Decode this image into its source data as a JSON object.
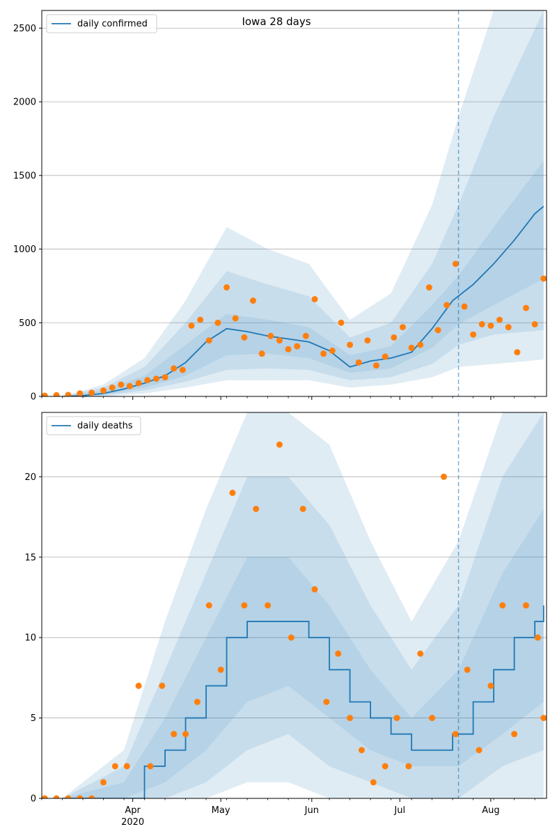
{
  "colors": {
    "line": "#1f77b4",
    "points": "#ff7f0e",
    "band": "#1f77b4",
    "grid": "#b0b0b0",
    "vline": "#1f77b4"
  },
  "chart_data": [
    {
      "type": "line",
      "title": "Iowa 28 days",
      "legend": "daily confirmed",
      "legend_position": "top-left",
      "grid": "horizontal",
      "x_range": [
        "2020-03-01",
        "2020-08-20"
      ],
      "ylim": [
        0,
        2620
      ],
      "yticks": [
        0,
        500,
        1000,
        1500,
        2000,
        2500
      ],
      "vline": "2020-07-21",
      "line": {
        "x": [
          "2020-03-08",
          "2020-03-15",
          "2020-03-22",
          "2020-03-29",
          "2020-04-05",
          "2020-04-12",
          "2020-04-19",
          "2020-04-26",
          "2020-05-03",
          "2020-05-10",
          "2020-05-17",
          "2020-05-24",
          "2020-05-31",
          "2020-06-07",
          "2020-06-14",
          "2020-06-21",
          "2020-06-28",
          "2020-07-05",
          "2020-07-12",
          "2020-07-19",
          "2020-07-26",
          "2020-08-02",
          "2020-08-09",
          "2020-08-16",
          "2020-08-19"
        ],
        "y": [
          0,
          5,
          20,
          50,
          90,
          140,
          230,
          370,
          460,
          440,
          410,
          390,
          370,
          310,
          200,
          240,
          260,
          300,
          460,
          650,
          760,
          900,
          1060,
          1240,
          1290
        ]
      },
      "bands": [
        {
          "x": [
            "2020-03-08",
            "2020-03-22",
            "2020-04-05",
            "2020-04-19",
            "2020-05-03",
            "2020-05-17",
            "2020-05-31",
            "2020-06-14",
            "2020-06-28",
            "2020-07-12",
            "2020-07-21",
            "2020-08-02",
            "2020-08-19"
          ],
          "low": [
            0,
            10,
            60,
            140,
            280,
            290,
            260,
            160,
            190,
            330,
            490,
            620,
            800
          ],
          "high": [
            0,
            40,
            140,
            350,
            560,
            520,
            470,
            280,
            340,
            620,
            820,
            1150,
            1600
          ]
        },
        {
          "x": [
            "2020-03-08",
            "2020-03-22",
            "2020-04-05",
            "2020-04-19",
            "2020-05-03",
            "2020-05-17",
            "2020-05-31",
            "2020-06-14",
            "2020-06-28",
            "2020-07-12",
            "2020-07-21",
            "2020-08-02",
            "2020-08-19"
          ],
          "low": [
            0,
            5,
            40,
            100,
            180,
            190,
            180,
            110,
            130,
            220,
            350,
            420,
            450
          ],
          "high": [
            0,
            60,
            200,
            500,
            850,
            760,
            680,
            400,
            500,
            900,
            1300,
            1900,
            2620
          ]
        },
        {
          "x": [
            "2020-03-08",
            "2020-03-22",
            "2020-04-05",
            "2020-04-19",
            "2020-05-03",
            "2020-05-17",
            "2020-05-31",
            "2020-06-14",
            "2020-06-28",
            "2020-07-12",
            "2020-07-21",
            "2020-08-02",
            "2020-08-19"
          ],
          "low": [
            0,
            0,
            20,
            60,
            110,
            110,
            110,
            60,
            80,
            130,
            200,
            220,
            250
          ],
          "high": [
            0,
            80,
            260,
            650,
            1150,
            1000,
            900,
            520,
            700,
            1300,
            1900,
            2620,
            2620
          ]
        }
      ],
      "points": {
        "x": [
          "2020-03-02",
          "2020-03-06",
          "2020-03-10",
          "2020-03-14",
          "2020-03-18",
          "2020-03-22",
          "2020-03-25",
          "2020-03-28",
          "2020-03-31",
          "2020-04-03",
          "2020-04-06",
          "2020-04-09",
          "2020-04-12",
          "2020-04-15",
          "2020-04-18",
          "2020-04-21",
          "2020-04-24",
          "2020-04-27",
          "2020-04-30",
          "2020-05-03",
          "2020-05-06",
          "2020-05-09",
          "2020-05-12",
          "2020-05-15",
          "2020-05-18",
          "2020-05-21",
          "2020-05-24",
          "2020-05-27",
          "2020-05-30",
          "2020-06-02",
          "2020-06-05",
          "2020-06-08",
          "2020-06-11",
          "2020-06-14",
          "2020-06-17",
          "2020-06-20",
          "2020-06-23",
          "2020-06-26",
          "2020-06-29",
          "2020-07-02",
          "2020-07-05",
          "2020-07-08",
          "2020-07-11",
          "2020-07-14",
          "2020-07-17",
          "2020-07-20",
          "2020-07-23",
          "2020-07-26",
          "2020-07-29",
          "2020-08-01",
          "2020-08-04",
          "2020-08-07",
          "2020-08-10",
          "2020-08-13",
          "2020-08-16",
          "2020-08-19"
        ],
        "y": [
          5,
          8,
          10,
          20,
          25,
          40,
          60,
          80,
          70,
          90,
          110,
          120,
          130,
          190,
          180,
          480,
          520,
          380,
          500,
          740,
          530,
          400,
          650,
          290,
          410,
          380,
          320,
          340,
          410,
          660,
          290,
          310,
          500,
          350,
          230,
          380,
          210,
          270,
          400,
          470,
          330,
          350,
          740,
          450,
          620,
          900,
          610,
          420,
          490,
          480,
          520,
          470,
          300,
          600,
          490,
          800
        ]
      }
    },
    {
      "type": "line",
      "title": "",
      "legend": "daily deaths",
      "legend_position": "top-left",
      "grid": "horizontal",
      "x_range": [
        "2020-03-01",
        "2020-08-20"
      ],
      "ylim": [
        0,
        24
      ],
      "yticks": [
        0,
        5,
        10,
        15,
        20
      ],
      "vline": "2020-07-21",
      "xtick_labels": [
        "Apr\n2020",
        "May",
        "Jun",
        "Jul",
        "Aug"
      ],
      "line": {
        "x": [
          "2020-03-08",
          "2020-03-22",
          "2020-03-29",
          "2020-04-05",
          "2020-04-12",
          "2020-04-19",
          "2020-04-26",
          "2020-05-03",
          "2020-05-10",
          "2020-05-17",
          "2020-05-24",
          "2020-05-31",
          "2020-06-07",
          "2020-06-14",
          "2020-06-21",
          "2020-06-28",
          "2020-07-05",
          "2020-07-12",
          "2020-07-19",
          "2020-07-26",
          "2020-08-02",
          "2020-08-09",
          "2020-08-16",
          "2020-08-19"
        ],
        "y": [
          0,
          0,
          0,
          2,
          3,
          5,
          7,
          10,
          11,
          11,
          11,
          10,
          8,
          6,
          5,
          4,
          3,
          3,
          4,
          6,
          8,
          10,
          11,
          12
        ]
      },
      "bands": [
        {
          "x": [
            "2020-03-08",
            "2020-03-29",
            "2020-04-12",
            "2020-04-26",
            "2020-05-10",
            "2020-05-24",
            "2020-06-07",
            "2020-06-21",
            "2020-07-05",
            "2020-07-21",
            "2020-08-05",
            "2020-08-19"
          ],
          "low": [
            0,
            0,
            1,
            3,
            6,
            7,
            5,
            3,
            2,
            2,
            4,
            6
          ],
          "high": [
            0,
            1,
            5,
            10,
            15,
            15,
            12,
            8,
            5,
            8,
            14,
            18
          ]
        },
        {
          "x": [
            "2020-03-08",
            "2020-03-29",
            "2020-04-12",
            "2020-04-26",
            "2020-05-10",
            "2020-05-24",
            "2020-06-07",
            "2020-06-21",
            "2020-07-05",
            "2020-07-21",
            "2020-08-05",
            "2020-08-19"
          ],
          "low": [
            0,
            0,
            0,
            1,
            3,
            4,
            2,
            1,
            0,
            0,
            2,
            3
          ],
          "high": [
            0,
            2,
            8,
            14,
            20,
            20,
            17,
            12,
            8,
            12,
            20,
            24
          ]
        },
        {
          "x": [
            "2020-03-08",
            "2020-03-29",
            "2020-04-12",
            "2020-04-26",
            "2020-05-10",
            "2020-05-24",
            "2020-06-07",
            "2020-06-21",
            "2020-07-05",
            "2020-07-21",
            "2020-08-05",
            "2020-08-19"
          ],
          "low": [
            0,
            0,
            0,
            0,
            1,
            1,
            0,
            0,
            0,
            0,
            0,
            0
          ],
          "high": [
            0,
            3,
            11,
            18,
            24,
            24,
            22,
            16,
            11,
            16,
            24,
            24
          ]
        }
      ],
      "points": {
        "x": [
          "2020-03-02",
          "2020-03-06",
          "2020-03-10",
          "2020-03-14",
          "2020-03-18",
          "2020-03-22",
          "2020-03-26",
          "2020-03-30",
          "2020-04-03",
          "2020-04-07",
          "2020-04-11",
          "2020-04-15",
          "2020-04-19",
          "2020-04-23",
          "2020-04-27",
          "2020-05-01",
          "2020-05-05",
          "2020-05-09",
          "2020-05-13",
          "2020-05-17",
          "2020-05-21",
          "2020-05-25",
          "2020-05-29",
          "2020-06-02",
          "2020-06-06",
          "2020-06-10",
          "2020-06-14",
          "2020-06-18",
          "2020-06-22",
          "2020-06-26",
          "2020-06-30",
          "2020-07-04",
          "2020-07-08",
          "2020-07-12",
          "2020-07-16",
          "2020-07-20",
          "2020-07-24",
          "2020-07-28",
          "2020-08-01",
          "2020-08-05",
          "2020-08-09",
          "2020-08-13",
          "2020-08-17",
          "2020-08-19"
        ],
        "y": [
          0,
          0,
          0,
          0,
          0,
          1,
          2,
          2,
          7,
          2,
          7,
          4,
          4,
          6,
          12,
          8,
          19,
          12,
          18,
          12,
          22,
          10,
          18,
          13,
          6,
          9,
          5,
          3,
          1,
          2,
          5,
          2,
          9,
          5,
          20,
          4,
          8,
          3,
          7,
          12,
          4,
          12,
          10,
          5
        ]
      }
    }
  ]
}
